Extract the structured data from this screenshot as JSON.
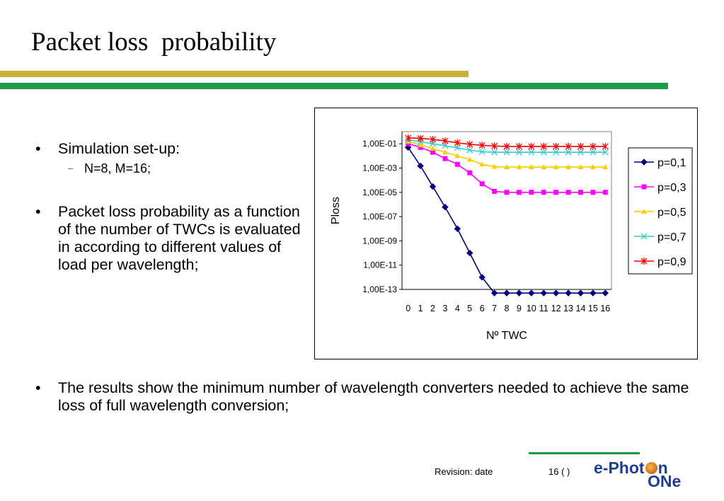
{
  "slide": {
    "title": "Packet loss  probability",
    "bullets": {
      "b1": "Simulation set-up:",
      "b1_sub_dash": "–",
      "b1_sub": "N=8, M=16;",
      "b2": "Packet loss probability as a function of the number of TWCs is evaluated in according to different values of load per wavelength;",
      "b3": "The results show the minimum number of wavelength converters needed to achieve the same loss of full wavelength conversion;"
    },
    "footer": {
      "revision": "Revision: date",
      "page": "16 (   )",
      "logo_part1": "e-Phot",
      "logo_part2": "n",
      "logo_line2": "ONe"
    },
    "colors": {
      "gold_bar": "#c8b23a",
      "green_bar": "#1c9a48",
      "logo": "#1d3f8f"
    }
  },
  "chart_data": {
    "type": "line",
    "xlabel": "Nº TWC",
    "ylabel": "Ploss",
    "y_scale": "log",
    "ylim": [
      1e-13,
      1
    ],
    "ytick_values": [
      1e-13,
      1e-11,
      1e-09,
      1e-07,
      1e-05,
      0.001,
      0.1
    ],
    "ytick_labels": [
      "1,00E-13",
      "1,00E-11",
      "1,00E-09",
      "1,00E-07",
      "1,00E-05",
      "1,00E-03",
      "1,00E-01"
    ],
    "x": [
      0,
      1,
      2,
      3,
      4,
      5,
      6,
      7,
      8,
      9,
      10,
      11,
      12,
      13,
      14,
      15,
      16
    ],
    "x_labels": [
      "0",
      "1",
      "2",
      "3",
      "4",
      "5",
      "6",
      "7",
      "8",
      "9",
      "10",
      "11",
      "12",
      "13",
      "14",
      "15",
      "16"
    ],
    "legend_position": "right",
    "series": [
      {
        "name": "p=0,1",
        "color": "#000080",
        "marker": "diamond",
        "values": [
          0.05,
          0.0015,
          3e-05,
          6e-07,
          1e-08,
          1e-10,
          1e-12,
          5e-14,
          5e-14,
          5e-14,
          5e-14,
          5e-14,
          5e-14,
          5e-14,
          5e-14,
          5e-14,
          5e-14
        ]
      },
      {
        "name": "p=0,3",
        "color": "#ff00ff",
        "marker": "square",
        "values": [
          0.1,
          0.05,
          0.02,
          0.006,
          0.002,
          0.0004,
          5e-05,
          1.2e-05,
          1e-05,
          1e-05,
          1e-05,
          1e-05,
          1e-05,
          1e-05,
          1e-05,
          1e-05,
          1e-05
        ]
      },
      {
        "name": "p=0,5",
        "color": "#ffcc00",
        "marker": "triangle",
        "values": [
          0.15,
          0.08,
          0.04,
          0.02,
          0.01,
          0.005,
          0.002,
          0.0013,
          0.0012,
          0.0012,
          0.0012,
          0.0012,
          0.0012,
          0.0012,
          0.0012,
          0.0012,
          0.0012
        ]
      },
      {
        "name": "p=0,7",
        "color": "#33cccc",
        "marker": "x",
        "values": [
          0.2,
          0.15,
          0.1,
          0.07,
          0.045,
          0.03,
          0.022,
          0.02,
          0.02,
          0.02,
          0.02,
          0.02,
          0.02,
          0.02,
          0.02,
          0.02,
          0.02
        ]
      },
      {
        "name": "p=0,9",
        "color": "#ff0000",
        "marker": "star",
        "values": [
          0.3,
          0.28,
          0.23,
          0.17,
          0.12,
          0.09,
          0.075,
          0.065,
          0.06,
          0.06,
          0.06,
          0.06,
          0.06,
          0.06,
          0.06,
          0.06,
          0.06
        ]
      }
    ]
  }
}
